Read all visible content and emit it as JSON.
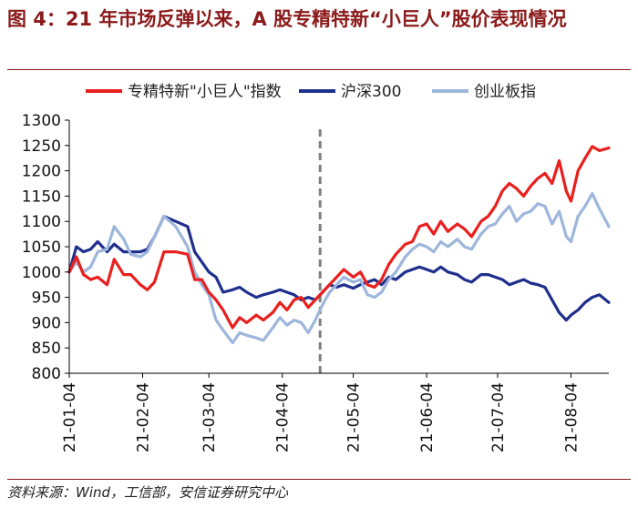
{
  "header": {
    "title": "图 4：21 年市场反弹以来，A 股专精特新“小巨人”股价表现情况"
  },
  "footer": {
    "source": "资料来源：Wind，工信部，安信证券研究中心"
  },
  "colors": {
    "title": "#8B1A1A",
    "series_red": "#E8201E",
    "series_navy": "#1F2F8C",
    "series_lightblue": "#9DB6DC",
    "marker_line": "#7F7F7F"
  },
  "chart_data": {
    "type": "line",
    "ylim": [
      800,
      1300
    ],
    "yticks": [
      800,
      850,
      900,
      950,
      1000,
      1050,
      1100,
      1150,
      1200,
      1250,
      1300
    ],
    "xticks": [
      "21-01-04",
      "21-02-04",
      "21-03-04",
      "21-04-04",
      "21-05-04",
      "21-06-04",
      "21-07-04",
      "21-08-04"
    ],
    "xrange": [
      "2021-01-04",
      "2021-08-20"
    ],
    "marker_date": "2021-04-20",
    "legend_position": "top",
    "grid": false,
    "series": [
      {
        "name": "专精特新\"小巨人\"指数",
        "color": "#E8201E",
        "points": [
          [
            "2021-01-04",
            1000
          ],
          [
            "2021-01-07",
            1030
          ],
          [
            "2021-01-10",
            995
          ],
          [
            "2021-01-13",
            985
          ],
          [
            "2021-01-16",
            990
          ],
          [
            "2021-01-20",
            975
          ],
          [
            "2021-01-23",
            1025
          ],
          [
            "2021-01-27",
            995
          ],
          [
            "2021-01-30",
            995
          ],
          [
            "2021-02-03",
            975
          ],
          [
            "2021-02-06",
            965
          ],
          [
            "2021-02-09",
            980
          ],
          [
            "2021-02-13",
            1040
          ],
          [
            "2021-02-18",
            1040
          ],
          [
            "2021-02-23",
            1035
          ],
          [
            "2021-02-26",
            985
          ],
          [
            "2021-03-01",
            985
          ],
          [
            "2021-03-04",
            960
          ],
          [
            "2021-03-07",
            945
          ],
          [
            "2021-03-10",
            925
          ],
          [
            "2021-03-14",
            890
          ],
          [
            "2021-03-17",
            910
          ],
          [
            "2021-03-20",
            900
          ],
          [
            "2021-03-24",
            915
          ],
          [
            "2021-03-27",
            905
          ],
          [
            "2021-03-31",
            920
          ],
          [
            "2021-04-03",
            940
          ],
          [
            "2021-04-06",
            925
          ],
          [
            "2021-04-09",
            945
          ],
          [
            "2021-04-12",
            950
          ],
          [
            "2021-04-15",
            930
          ],
          [
            "2021-04-18",
            945
          ],
          [
            "2021-04-21",
            960
          ],
          [
            "2021-04-24",
            975
          ],
          [
            "2021-04-27",
            990
          ],
          [
            "2021-04-30",
            1005
          ],
          [
            "2021-05-04",
            990
          ],
          [
            "2021-05-07",
            1000
          ],
          [
            "2021-05-10",
            975
          ],
          [
            "2021-05-13",
            970
          ],
          [
            "2021-05-16",
            985
          ],
          [
            "2021-05-19",
            1015
          ],
          [
            "2021-05-22",
            1035
          ],
          [
            "2021-05-26",
            1055
          ],
          [
            "2021-05-29",
            1060
          ],
          [
            "2021-06-01",
            1090
          ],
          [
            "2021-06-04",
            1095
          ],
          [
            "2021-06-07",
            1075
          ],
          [
            "2021-06-10",
            1100
          ],
          [
            "2021-06-13",
            1080
          ],
          [
            "2021-06-17",
            1095
          ],
          [
            "2021-06-20",
            1085
          ],
          [
            "2021-06-23",
            1070
          ],
          [
            "2021-06-27",
            1100
          ],
          [
            "2021-06-30",
            1110
          ],
          [
            "2021-07-03",
            1130
          ],
          [
            "2021-07-06",
            1160
          ],
          [
            "2021-07-09",
            1175
          ],
          [
            "2021-07-12",
            1165
          ],
          [
            "2021-07-15",
            1150
          ],
          [
            "2021-07-18",
            1170
          ],
          [
            "2021-07-21",
            1185
          ],
          [
            "2021-07-24",
            1195
          ],
          [
            "2021-07-27",
            1175
          ],
          [
            "2021-07-30",
            1220
          ],
          [
            "2021-08-02",
            1160
          ],
          [
            "2021-08-04",
            1140
          ],
          [
            "2021-08-07",
            1200
          ],
          [
            "2021-08-10",
            1225
          ],
          [
            "2021-08-13",
            1248
          ],
          [
            "2021-08-16",
            1240
          ],
          [
            "2021-08-20",
            1245
          ]
        ]
      },
      {
        "name": "沪深300",
        "color": "#1F2F8C",
        "points": [
          [
            "2021-01-04",
            1000
          ],
          [
            "2021-01-07",
            1050
          ],
          [
            "2021-01-10",
            1040
          ],
          [
            "2021-01-13",
            1045
          ],
          [
            "2021-01-16",
            1060
          ],
          [
            "2021-01-20",
            1040
          ],
          [
            "2021-01-23",
            1055
          ],
          [
            "2021-01-27",
            1040
          ],
          [
            "2021-01-30",
            1040
          ],
          [
            "2021-02-03",
            1040
          ],
          [
            "2021-02-06",
            1045
          ],
          [
            "2021-02-09",
            1070
          ],
          [
            "2021-02-13",
            1110
          ],
          [
            "2021-02-18",
            1100
          ],
          [
            "2021-02-23",
            1090
          ],
          [
            "2021-02-26",
            1040
          ],
          [
            "2021-03-01",
            1020
          ],
          [
            "2021-03-04",
            1000
          ],
          [
            "2021-03-07",
            990
          ],
          [
            "2021-03-10",
            960
          ],
          [
            "2021-03-14",
            965
          ],
          [
            "2021-03-17",
            970
          ],
          [
            "2021-03-20",
            960
          ],
          [
            "2021-03-24",
            950
          ],
          [
            "2021-03-27",
            955
          ],
          [
            "2021-03-31",
            960
          ],
          [
            "2021-04-03",
            965
          ],
          [
            "2021-04-06",
            960
          ],
          [
            "2021-04-09",
            955
          ],
          [
            "2021-04-12",
            945
          ],
          [
            "2021-04-15",
            950
          ],
          [
            "2021-04-18",
            945
          ],
          [
            "2021-04-21",
            960
          ],
          [
            "2021-04-24",
            975
          ],
          [
            "2021-04-27",
            970
          ],
          [
            "2021-04-30",
            975
          ],
          [
            "2021-05-04",
            968
          ],
          [
            "2021-05-07",
            975
          ],
          [
            "2021-05-10",
            980
          ],
          [
            "2021-05-13",
            985
          ],
          [
            "2021-05-16",
            975
          ],
          [
            "2021-05-19",
            990
          ],
          [
            "2021-05-22",
            985
          ],
          [
            "2021-05-26",
            1000
          ],
          [
            "2021-05-29",
            1005
          ],
          [
            "2021-06-01",
            1010
          ],
          [
            "2021-06-04",
            1005
          ],
          [
            "2021-06-07",
            1000
          ],
          [
            "2021-06-10",
            1010
          ],
          [
            "2021-06-13",
            1000
          ],
          [
            "2021-06-17",
            995
          ],
          [
            "2021-06-20",
            985
          ],
          [
            "2021-06-23",
            980
          ],
          [
            "2021-06-27",
            995
          ],
          [
            "2021-06-30",
            995
          ],
          [
            "2021-07-03",
            990
          ],
          [
            "2021-07-06",
            985
          ],
          [
            "2021-07-09",
            975
          ],
          [
            "2021-07-12",
            980
          ],
          [
            "2021-07-15",
            985
          ],
          [
            "2021-07-18",
            978
          ],
          [
            "2021-07-21",
            975
          ],
          [
            "2021-07-24",
            970
          ],
          [
            "2021-07-27",
            945
          ],
          [
            "2021-07-30",
            920
          ],
          [
            "2021-08-02",
            905
          ],
          [
            "2021-08-04",
            915
          ],
          [
            "2021-08-07",
            925
          ],
          [
            "2021-08-10",
            940
          ],
          [
            "2021-08-13",
            950
          ],
          [
            "2021-08-16",
            955
          ],
          [
            "2021-08-20",
            940
          ]
        ]
      },
      {
        "name": "创业板指",
        "color": "#9DB6DC",
        "points": [
          [
            "2021-01-04",
            1000
          ],
          [
            "2021-01-07",
            1020
          ],
          [
            "2021-01-10",
            1000
          ],
          [
            "2021-01-13",
            1010
          ],
          [
            "2021-01-16",
            1040
          ],
          [
            "2021-01-20",
            1045
          ],
          [
            "2021-01-23",
            1090
          ],
          [
            "2021-01-27",
            1065
          ],
          [
            "2021-01-30",
            1035
          ],
          [
            "2021-02-03",
            1030
          ],
          [
            "2021-02-06",
            1040
          ],
          [
            "2021-02-09",
            1070
          ],
          [
            "2021-02-13",
            1110
          ],
          [
            "2021-02-18",
            1090
          ],
          [
            "2021-02-23",
            1050
          ],
          [
            "2021-02-26",
            1000
          ],
          [
            "2021-03-01",
            975
          ],
          [
            "2021-03-04",
            955
          ],
          [
            "2021-03-07",
            905
          ],
          [
            "2021-03-10",
            885
          ],
          [
            "2021-03-14",
            860
          ],
          [
            "2021-03-17",
            880
          ],
          [
            "2021-03-20",
            875
          ],
          [
            "2021-03-24",
            870
          ],
          [
            "2021-03-27",
            865
          ],
          [
            "2021-03-31",
            890
          ],
          [
            "2021-04-03",
            910
          ],
          [
            "2021-04-06",
            895
          ],
          [
            "2021-04-09",
            905
          ],
          [
            "2021-04-12",
            900
          ],
          [
            "2021-04-15",
            880
          ],
          [
            "2021-04-18",
            905
          ],
          [
            "2021-04-21",
            935
          ],
          [
            "2021-04-24",
            960
          ],
          [
            "2021-04-27",
            975
          ],
          [
            "2021-04-30",
            990
          ],
          [
            "2021-05-04",
            980
          ],
          [
            "2021-05-07",
            985
          ],
          [
            "2021-05-10",
            955
          ],
          [
            "2021-05-13",
            950
          ],
          [
            "2021-05-16",
            960
          ],
          [
            "2021-05-19",
            985
          ],
          [
            "2021-05-22",
            1000
          ],
          [
            "2021-05-26",
            1030
          ],
          [
            "2021-05-29",
            1045
          ],
          [
            "2021-06-01",
            1055
          ],
          [
            "2021-06-04",
            1050
          ],
          [
            "2021-06-07",
            1040
          ],
          [
            "2021-06-10",
            1060
          ],
          [
            "2021-06-13",
            1050
          ],
          [
            "2021-06-17",
            1065
          ],
          [
            "2021-06-20",
            1050
          ],
          [
            "2021-06-23",
            1045
          ],
          [
            "2021-06-27",
            1075
          ],
          [
            "2021-06-30",
            1090
          ],
          [
            "2021-07-03",
            1095
          ],
          [
            "2021-07-06",
            1115
          ],
          [
            "2021-07-09",
            1130
          ],
          [
            "2021-07-12",
            1100
          ],
          [
            "2021-07-15",
            1115
          ],
          [
            "2021-07-18",
            1120
          ],
          [
            "2021-07-21",
            1135
          ],
          [
            "2021-07-24",
            1130
          ],
          [
            "2021-07-27",
            1095
          ],
          [
            "2021-07-30",
            1120
          ],
          [
            "2021-08-02",
            1070
          ],
          [
            "2021-08-04",
            1060
          ],
          [
            "2021-08-07",
            1110
          ],
          [
            "2021-08-10",
            1130
          ],
          [
            "2021-08-13",
            1155
          ],
          [
            "2021-08-16",
            1125
          ],
          [
            "2021-08-20",
            1090
          ]
        ]
      }
    ]
  }
}
